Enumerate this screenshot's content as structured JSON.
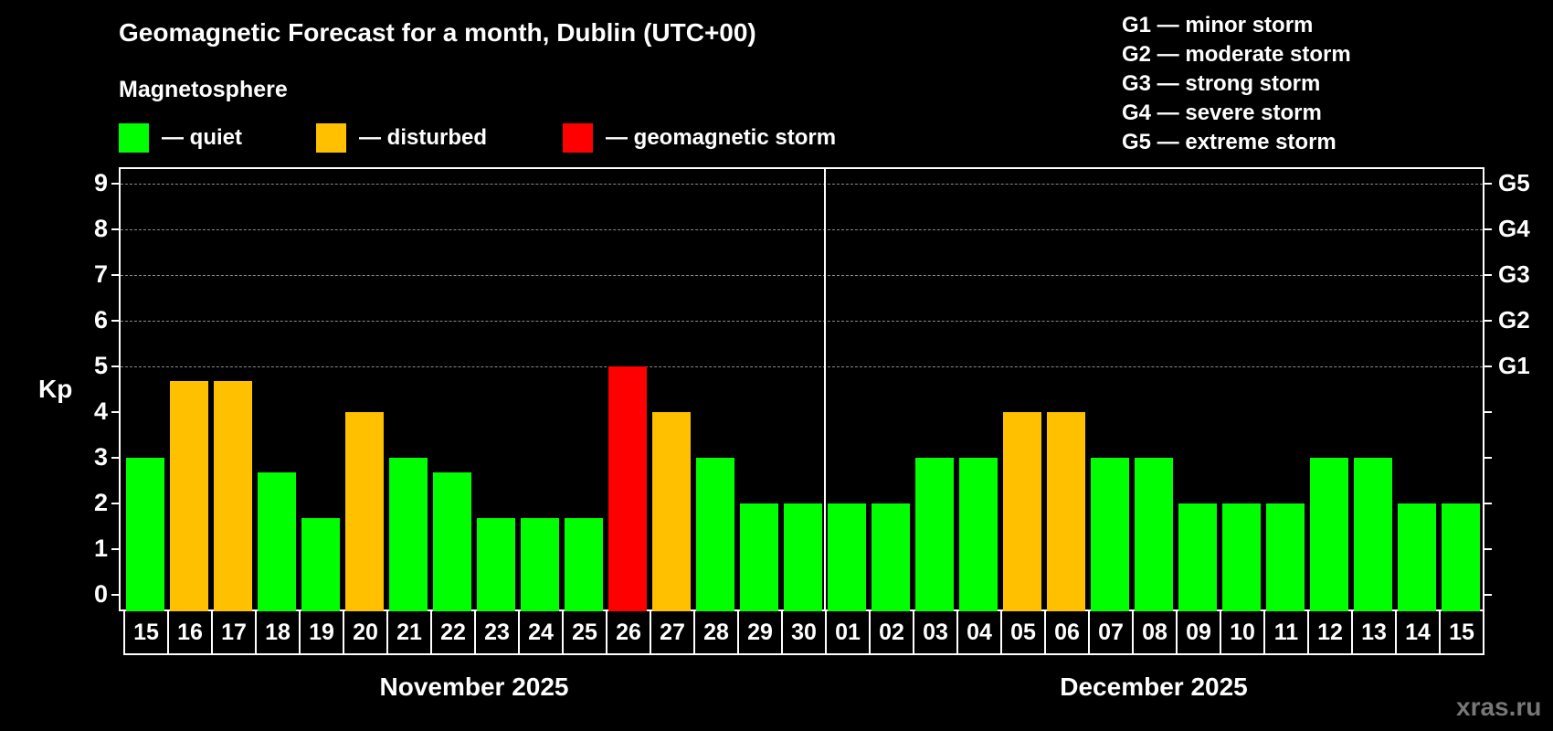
{
  "header": {
    "title": "Geomagnetic Forecast for a month, Dublin (UTC+00)",
    "subtitle": "Magnetosphere"
  },
  "legend": [
    {
      "label": "— quiet",
      "color": "#00ff00"
    },
    {
      "label": "— disturbed",
      "color": "#ffc000"
    },
    {
      "label": "— geomagnetic storm",
      "color": "#ff0000"
    }
  ],
  "gscale_legend": [
    "G1 — minor storm",
    "G2 — moderate storm",
    "G3 — strong storm",
    "G4 — severe storm",
    "G5 — extreme storm"
  ],
  "axis": {
    "ylabel": "Kp",
    "yticks": [
      "0",
      "1",
      "2",
      "3",
      "4",
      "5",
      "6",
      "7",
      "8",
      "9"
    ],
    "right_labels": [
      {
        "kp": 5,
        "label": "G1"
      },
      {
        "kp": 6,
        "label": "G2"
      },
      {
        "kp": 7,
        "label": "G3"
      },
      {
        "kp": 8,
        "label": "G4"
      },
      {
        "kp": 9,
        "label": "G5"
      }
    ]
  },
  "months": [
    {
      "label": "November 2025"
    },
    {
      "label": "December 2025"
    }
  ],
  "watermark": "xras.ru",
  "colors": {
    "quiet": "#00ff00",
    "disturbed": "#ffc000",
    "storm": "#ff0000",
    "background": "#000000",
    "grid": "#8a8a8a"
  },
  "chart_data": {
    "type": "bar",
    "title": "Geomagnetic Forecast for a month, Dublin (UTC+00)",
    "xlabel": "",
    "ylabel": "Kp",
    "ylim": [
      0,
      9
    ],
    "grid": true,
    "secondary_axis_labels": {
      "5": "G1",
      "6": "G2",
      "7": "G3",
      "8": "G4",
      "9": "G5"
    },
    "categories": [
      "15",
      "16",
      "17",
      "18",
      "19",
      "20",
      "21",
      "22",
      "23",
      "24",
      "25",
      "26",
      "27",
      "28",
      "29",
      "30",
      "01",
      "02",
      "03",
      "04",
      "05",
      "06",
      "07",
      "08",
      "09",
      "10",
      "11",
      "12",
      "13",
      "14",
      "15"
    ],
    "month_groups": [
      {
        "label": "November 2025",
        "from": 0,
        "to": 15
      },
      {
        "label": "December 2025",
        "from": 16,
        "to": 30
      }
    ],
    "values": [
      3,
      4.67,
      4.67,
      2.67,
      1.67,
      4,
      3,
      2.67,
      1.67,
      1.67,
      1.67,
      5,
      4,
      3,
      2,
      2,
      2,
      2,
      3,
      3,
      4,
      4,
      3,
      3,
      2,
      2,
      2,
      3,
      3,
      2,
      2
    ],
    "status": [
      "quiet",
      "disturbed",
      "disturbed",
      "quiet",
      "quiet",
      "disturbed",
      "quiet",
      "quiet",
      "quiet",
      "quiet",
      "quiet",
      "storm",
      "disturbed",
      "quiet",
      "quiet",
      "quiet",
      "quiet",
      "quiet",
      "quiet",
      "quiet",
      "disturbed",
      "disturbed",
      "quiet",
      "quiet",
      "quiet",
      "quiet",
      "quiet",
      "quiet",
      "quiet",
      "quiet",
      "quiet"
    ],
    "legend": [
      "quiet",
      "disturbed",
      "geomagnetic storm"
    ]
  }
}
